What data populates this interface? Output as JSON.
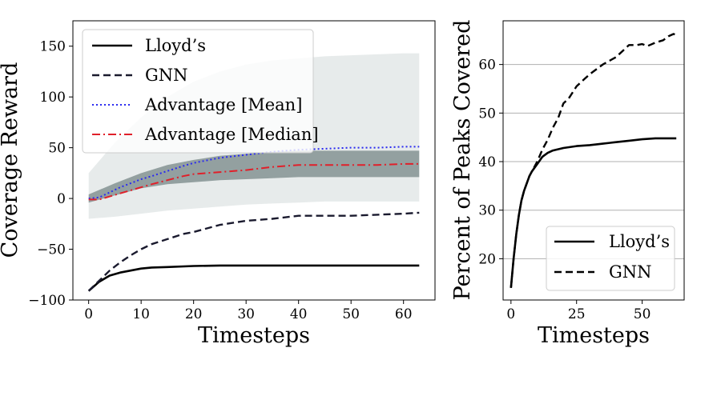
{
  "chart_data": [
    {
      "type": "line",
      "xlabel": "Timesteps",
      "ylabel": "Coverage Reward",
      "xlim": [
        -3,
        66
      ],
      "ylim": [
        -100,
        175
      ],
      "xticks": [
        0,
        10,
        20,
        30,
        40,
        50,
        60
      ],
      "yticks": [
        -100,
        -50,
        0,
        50,
        100,
        150
      ],
      "xtick_labels": [
        "0",
        "10",
        "20",
        "30",
        "40",
        "50",
        "60"
      ],
      "ytick_labels": [
        "−100",
        "−50",
        "0",
        "50",
        "100",
        "150"
      ],
      "grid": false,
      "legend_position": "top-left",
      "band": {
        "name": "Advantage distribution",
        "x": [
          0,
          5,
          10,
          15,
          20,
          25,
          30,
          35,
          40,
          45,
          50,
          55,
          60,
          63
        ],
        "inner_low": [
          -4,
          3,
          10,
          14,
          16,
          18,
          19,
          20,
          21,
          21,
          21,
          21,
          21,
          21
        ],
        "inner_high": [
          4,
          15,
          25,
          33,
          38,
          42,
          44,
          46,
          47,
          47,
          47,
          47,
          47,
          47
        ],
        "outer_low": [
          -20,
          -18,
          -15,
          -12,
          -10,
          -8,
          -6,
          -5,
          -4,
          -3,
          -3,
          -3,
          -3,
          -3
        ],
        "outer_high": [
          25,
          55,
          80,
          100,
          115,
          125,
          132,
          136,
          138,
          140,
          141,
          142,
          143,
          143
        ]
      },
      "series": [
        {
          "name": "Lloyd’s",
          "style": "solid",
          "color": "#000000",
          "x": [
            0,
            2,
            4,
            6,
            8,
            10,
            12,
            15,
            20,
            25,
            30,
            35,
            40,
            45,
            50,
            55,
            60,
            63
          ],
          "y": [
            -91,
            -82,
            -76,
            -73,
            -71,
            -69,
            -68,
            -67.5,
            -66.5,
            -66,
            -66,
            -66,
            -66,
            -66,
            -66,
            -66,
            -66,
            -66
          ]
        },
        {
          "name": "GNN",
          "style": "dashed",
          "color": "#1a1a2e",
          "x": [
            0,
            2,
            4,
            6,
            8,
            10,
            12,
            15,
            18,
            20,
            25,
            30,
            35,
            40,
            45,
            50,
            55,
            60,
            63
          ],
          "y": [
            -91,
            -81,
            -71,
            -63,
            -56,
            -50,
            -45,
            -40,
            -35,
            -33,
            -26,
            -22,
            -20,
            -17,
            -17,
            -17,
            -16,
            -15,
            -14
          ]
        },
        {
          "name": "Advantage [Mean]",
          "style": "dotted",
          "color": "#2a2af0",
          "x": [
            0,
            2,
            4,
            6,
            8,
            10,
            12,
            15,
            18,
            20,
            25,
            30,
            35,
            40,
            45,
            50,
            55,
            60,
            63
          ],
          "y": [
            0,
            1,
            6,
            11,
            15,
            19,
            22,
            27,
            32,
            35,
            40,
            43,
            46,
            48,
            49,
            50,
            50,
            51,
            51
          ]
        },
        {
          "name": "Advantage [Median]",
          "style": "dashdot",
          "color": "#e0202a",
          "x": [
            0,
            2,
            4,
            6,
            8,
            10,
            12,
            15,
            18,
            20,
            25,
            30,
            35,
            40,
            45,
            50,
            55,
            60,
            63
          ],
          "y": [
            -1,
            -1,
            2,
            5,
            8,
            11,
            14,
            18,
            22,
            24,
            26,
            28,
            31,
            33,
            33,
            33,
            33,
            34,
            34
          ]
        }
      ]
    },
    {
      "type": "line",
      "xlabel": "Timesteps",
      "ylabel": "Percent of Peaks Covered",
      "xlim": [
        -3,
        66
      ],
      "ylim": [
        11.5,
        69
      ],
      "xticks": [
        0,
        25,
        50
      ],
      "yticks": [
        20,
        30,
        40,
        50,
        60
      ],
      "xtick_labels": [
        "0",
        "25",
        "50"
      ],
      "ytick_labels": [
        "20",
        "30",
        "40",
        "50",
        "60"
      ],
      "grid": true,
      "legend_position": "bottom-right",
      "series": [
        {
          "name": "Lloyd’s",
          "style": "solid",
          "color": "#000000",
          "x": [
            0,
            1,
            2,
            3,
            4,
            5,
            6,
            7,
            8,
            10,
            12,
            14,
            16,
            20,
            25,
            30,
            35,
            40,
            45,
            50,
            55,
            60,
            63
          ],
          "y": [
            14,
            20,
            25,
            29,
            32,
            34,
            35.5,
            37,
            38,
            39.5,
            41,
            41.8,
            42.3,
            42.8,
            43.2,
            43.4,
            43.7,
            44,
            44.3,
            44.6,
            44.8,
            44.8,
            44.8
          ]
        },
        {
          "name": "GNN",
          "style": "dashed",
          "color": "#000000",
          "x": [
            0,
            1,
            2,
            3,
            4,
            5,
            6,
            7,
            8,
            10,
            12,
            14,
            16,
            18,
            20,
            22,
            25,
            28,
            30,
            35,
            40,
            45,
            48,
            50,
            52,
            55,
            58,
            60,
            62,
            63
          ],
          "y": [
            14,
            20,
            25,
            29,
            32,
            34,
            35.5,
            37,
            38,
            40,
            42.5,
            44.5,
            47,
            49,
            52,
            53,
            55.5,
            57,
            58,
            60,
            61.5,
            64,
            64,
            64.2,
            63.8,
            64.5,
            65,
            65.8,
            66.3,
            66
          ]
        }
      ]
    }
  ]
}
